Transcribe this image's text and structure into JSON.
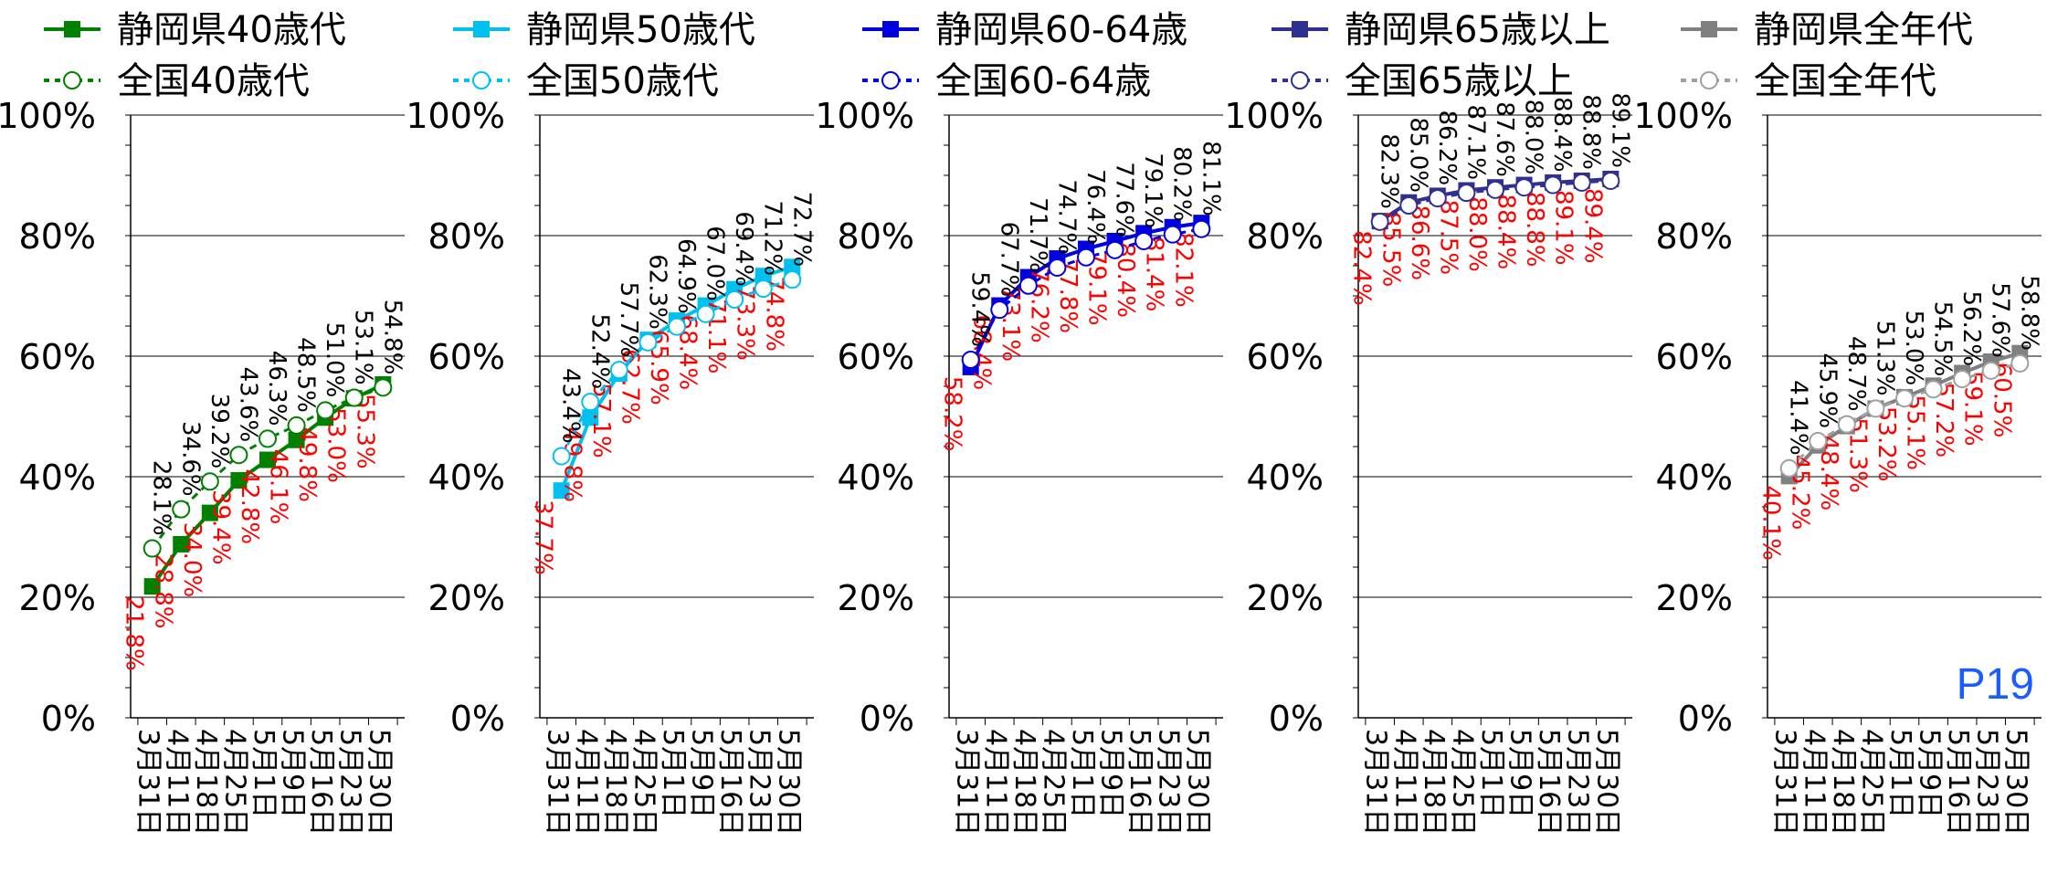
{
  "page_tag": "P19",
  "chart_data": [
    {
      "type": "line",
      "categories": [
        "3月31日",
        "4月11日",
        "4月18日",
        "4月25日",
        "5月1日",
        "5月9日",
        "5月16日",
        "5月23日",
        "5月30日"
      ],
      "ylim": [
        0,
        100
      ],
      "y_ticks": [
        "0%",
        "20%",
        "40%",
        "60%",
        "80%",
        "100%"
      ],
      "grid": true,
      "legend": "top",
      "series": [
        {
          "name": "静岡県40歳代",
          "values": [
            21.8,
            28.8,
            34.0,
            39.4,
            42.8,
            46.1,
            49.8,
            53.0,
            55.3
          ],
          "labels": [
            "21.8%",
            "28.8%",
            "34.0%",
            "39.4%",
            "42.8%",
            "46.1%",
            "49.8%",
            "53.0%",
            "55.3%"
          ],
          "color": "#008000",
          "label_color": "#ff0000",
          "marker": "square",
          "dash": false
        },
        {
          "name": "全国40歳代",
          "values": [
            28.1,
            34.6,
            39.2,
            43.6,
            46.3,
            48.5,
            51.0,
            53.1,
            54.8
          ],
          "labels": [
            "28.1%",
            "34.6%",
            "39.2%",
            "43.6%",
            "46.3%",
            "48.5%",
            "51.0%",
            "53.1%",
            "54.8%"
          ],
          "color": "#008000",
          "label_color": "#000000",
          "marker": "circle",
          "dash": true
        }
      ]
    },
    {
      "type": "line",
      "categories": [
        "3月31日",
        "4月11日",
        "4月18日",
        "4月25日",
        "5月1日",
        "5月9日",
        "5月16日",
        "5月23日",
        "5月30日"
      ],
      "ylim": [
        0,
        100
      ],
      "y_ticks": [
        "0%",
        "20%",
        "40%",
        "60%",
        "80%",
        "100%"
      ],
      "grid": true,
      "legend": "top",
      "series": [
        {
          "name": "静岡県50歳代",
          "values": [
            37.7,
            49.8,
            57.1,
            62.7,
            65.9,
            68.4,
            71.1,
            73.3,
            74.8
          ],
          "labels": [
            "37.7%",
            "49.8%",
            "57.1%",
            "62.7%",
            "65.9%",
            "68.4%",
            "71.1%",
            "73.3%",
            "74.8%"
          ],
          "color": "#00c0f0",
          "label_color": "#ff0000",
          "marker": "square",
          "dash": false
        },
        {
          "name": "全国50歳代",
          "values": [
            43.4,
            52.4,
            57.7,
            62.3,
            64.9,
            67.0,
            69.4,
            71.2,
            72.7
          ],
          "labels": [
            "43.4%",
            "52.4%",
            "57.7%",
            "62.3%",
            "64.9%",
            "67.0%",
            "69.4%",
            "71.2%",
            "72.7%"
          ],
          "color": "#00c0f0",
          "label_color": "#000000",
          "marker": "circle",
          "dash": true
        }
      ]
    },
    {
      "type": "line",
      "categories": [
        "3月31日",
        "4月11日",
        "4月18日",
        "4月25日",
        "5月1日",
        "5月9日",
        "5月16日",
        "5月23日",
        "5月30日"
      ],
      "ylim": [
        0,
        100
      ],
      "y_ticks": [
        "0%",
        "20%",
        "40%",
        "60%",
        "80%",
        "100%"
      ],
      "grid": true,
      "legend": "top",
      "series": [
        {
          "name": "静岡県60-64歳",
          "values": [
            58.2,
            68.4,
            73.1,
            76.2,
            77.8,
            79.1,
            80.4,
            81.4,
            82.1
          ],
          "labels": [
            "58.2%",
            "68.4%",
            "73.1%",
            "76.2%",
            "77.8%",
            "79.1%",
            "80.4%",
            "81.4%",
            "82.1%"
          ],
          "color": "#0000e0",
          "label_color": "#ff0000",
          "marker": "square",
          "dash": false
        },
        {
          "name": "全国60-64歳",
          "values": [
            59.4,
            67.7,
            71.7,
            74.7,
            76.4,
            77.6,
            79.1,
            80.2,
            81.1
          ],
          "labels": [
            "59.4%",
            "67.7%",
            "71.7%",
            "74.7%",
            "76.4%",
            "77.6%",
            "79.1%",
            "80.2%",
            "81.1%"
          ],
          "color": "#0000e0",
          "label_color": "#000000",
          "marker": "circle",
          "dash": true
        }
      ]
    },
    {
      "type": "line",
      "categories": [
        "3月31日",
        "4月11日",
        "4月18日",
        "4月25日",
        "5月1日",
        "5月9日",
        "5月16日",
        "5月23日",
        "5月30日"
      ],
      "ylim": [
        0,
        100
      ],
      "y_ticks": [
        "0%",
        "20%",
        "40%",
        "60%",
        "80%",
        "100%"
      ],
      "grid": true,
      "legend": "top",
      "series": [
        {
          "name": "静岡県65歳以上",
          "values": [
            82.4,
            85.5,
            86.6,
            87.5,
            88.0,
            88.4,
            88.8,
            89.1,
            89.4
          ],
          "labels": [
            "82.4%",
            "85.5%",
            "86.6%",
            "87.5%",
            "88.0%",
            "88.4%",
            "88.8%",
            "89.1%",
            "89.4%"
          ],
          "color": "#303090",
          "label_color": "#ff0000",
          "marker": "square",
          "dash": false
        },
        {
          "name": "全国65歳以上",
          "values": [
            82.3,
            85.0,
            86.2,
            87.1,
            87.6,
            88.0,
            88.4,
            88.8,
            89.1
          ],
          "labels": [
            "82.3%",
            "85.0%",
            "86.2%",
            "87.1%",
            "87.6%",
            "88.0%",
            "88.4%",
            "88.8%",
            "89.1%"
          ],
          "color": "#303090",
          "label_color": "#000000",
          "marker": "circle",
          "dash": true
        }
      ]
    },
    {
      "type": "line",
      "categories": [
        "3月31日",
        "4月11日",
        "4月18日",
        "4月25日",
        "5月1日",
        "5月9日",
        "5月16日",
        "5月23日",
        "5月30日"
      ],
      "ylim": [
        0,
        100
      ],
      "y_ticks": [
        "0%",
        "20%",
        "40%",
        "60%",
        "80%",
        "100%"
      ],
      "grid": true,
      "legend": "top",
      "series": [
        {
          "name": "静岡県全年代",
          "values": [
            40.1,
            45.2,
            48.4,
            51.3,
            53.2,
            55.1,
            57.2,
            59.1,
            60.5
          ],
          "labels": [
            "40.1%",
            "45.2%",
            "48.4%",
            "51.3%",
            "53.2%",
            "55.1%",
            "57.2%",
            "59.1%",
            "60.5%"
          ],
          "color": "#808080",
          "label_color": "#ff0000",
          "marker": "square",
          "dash": false
        },
        {
          "name": "全国全年代",
          "values": [
            41.4,
            45.9,
            48.7,
            51.3,
            53.0,
            54.5,
            56.2,
            57.6,
            58.8
          ],
          "labels": [
            "41.4%",
            "45.9%",
            "48.7%",
            "51.3%",
            "53.0%",
            "54.5%",
            "56.2%",
            "57.6%",
            "58.8%"
          ],
          "color": "#a0a0a0",
          "label_color": "#000000",
          "marker": "circle",
          "dash": true
        }
      ]
    }
  ]
}
